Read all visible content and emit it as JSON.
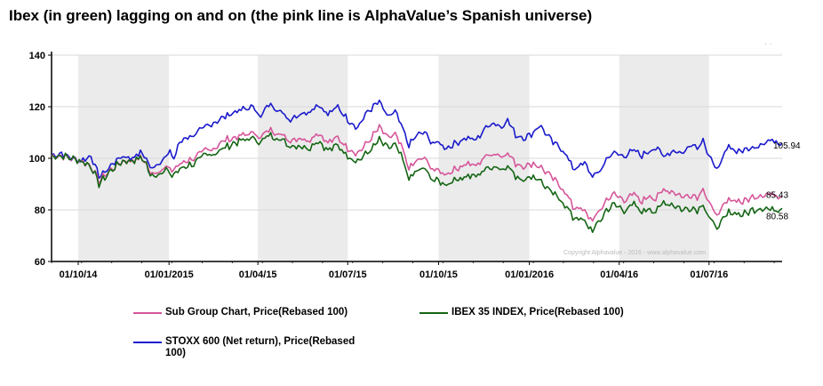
{
  "title": "Ibex (in green) lagging on and on (the pink line is AlphaValue’s Spanish universe)",
  "colors": {
    "pink": "#d6569a",
    "green": "#146514",
    "blue": "#1a1acc",
    "band": "#ebebeb"
  },
  "copyright": "Copyright Alphavalue - 2016 - www.alphavalue.com",
  "top_right_mark": "· ·",
  "chart_data": {
    "type": "line",
    "title": "",
    "xlabel": "",
    "ylabel": "",
    "ylim": [
      60,
      140
    ],
    "yticks": [
      60,
      80,
      100,
      120,
      140
    ],
    "xlim_days": [
      0,
      740
    ],
    "x_tick_labels": [
      {
        "label": "01/10/14",
        "day": 27
      },
      {
        "label": "01/01/2015",
        "day": 119
      },
      {
        "label": "01/04/15",
        "day": 209
      },
      {
        "label": "01/07/15",
        "day": 300
      },
      {
        "label": "01/10/15",
        "day": 392
      },
      {
        "label": "01/01/2016",
        "day": 484
      },
      {
        "label": "01/04/16",
        "day": 575
      },
      {
        "label": "01/07/16",
        "day": 666
      }
    ],
    "shaded_periods_days": [
      [
        27,
        119
      ],
      [
        209,
        300
      ],
      [
        392,
        484
      ],
      [
        575,
        666
      ]
    ],
    "series": [
      {
        "name": "STOXX 600 (Net return), Price(Rebased 100)",
        "color_key": "blue",
        "end_label": "105.94",
        "points": [
          [
            0,
            101
          ],
          [
            10,
            102
          ],
          [
            20,
            100
          ],
          [
            30,
            99
          ],
          [
            40,
            101
          ],
          [
            48,
            93
          ],
          [
            55,
            95
          ],
          [
            62,
            98
          ],
          [
            72,
            101
          ],
          [
            80,
            100
          ],
          [
            90,
            102
          ],
          [
            95,
            101
          ],
          [
            100,
            96
          ],
          [
            108,
            98
          ],
          [
            116,
            101
          ],
          [
            120,
            102
          ],
          [
            125,
            100
          ],
          [
            128,
            105
          ],
          [
            135,
            108
          ],
          [
            145,
            109
          ],
          [
            155,
            112
          ],
          [
            165,
            114
          ],
          [
            175,
            116
          ],
          [
            185,
            118
          ],
          [
            195,
            119
          ],
          [
            205,
            120
          ],
          [
            212,
            116
          ],
          [
            220,
            121
          ],
          [
            230,
            119
          ],
          [
            240,
            115
          ],
          [
            250,
            117
          ],
          [
            260,
            118
          ],
          [
            270,
            121
          ],
          [
            280,
            117
          ],
          [
            290,
            120
          ],
          [
            300,
            115
          ],
          [
            310,
            112
          ],
          [
            320,
            118
          ],
          [
            332,
            122
          ],
          [
            340,
            116
          ],
          [
            348,
            118
          ],
          [
            355,
            112
          ],
          [
            362,
            105
          ],
          [
            370,
            109
          ],
          [
            378,
            110
          ],
          [
            385,
            106
          ],
          [
            392,
            106
          ],
          [
            400,
            104
          ],
          [
            410,
            106
          ],
          [
            420,
            108
          ],
          [
            430,
            107
          ],
          [
            440,
            112
          ],
          [
            448,
            114
          ],
          [
            455,
            112
          ],
          [
            462,
            115
          ],
          [
            470,
            109
          ],
          [
            480,
            108
          ],
          [
            488,
            110
          ],
          [
            494,
            113
          ],
          [
            500,
            110
          ],
          [
            508,
            106
          ],
          [
            516,
            104
          ],
          [
            522,
            101
          ],
          [
            528,
            96
          ],
          [
            534,
            97
          ],
          [
            540,
            98
          ],
          [
            548,
            93
          ],
          [
            556,
            95
          ],
          [
            562,
            100
          ],
          [
            570,
            102
          ],
          [
            580,
            101
          ],
          [
            590,
            103
          ],
          [
            598,
            101
          ],
          [
            605,
            103
          ],
          [
            612,
            104
          ],
          [
            620,
            101
          ],
          [
            630,
            103
          ],
          [
            640,
            102
          ],
          [
            648,
            106
          ],
          [
            655,
            104
          ],
          [
            660,
            108
          ],
          [
            665,
            101
          ],
          [
            670,
            98
          ],
          [
            676,
            96
          ],
          [
            680,
            100
          ],
          [
            686,
            105
          ],
          [
            692,
            103
          ],
          [
            700,
            103
          ],
          [
            710,
            104
          ],
          [
            720,
            106
          ],
          [
            730,
            107
          ],
          [
            740,
            105.94
          ]
        ]
      },
      {
        "name": "Sub Group Chart, Price(Rebased 100)",
        "color_key": "pink",
        "end_label": "85.43",
        "points": [
          [
            0,
            101
          ],
          [
            10,
            101
          ],
          [
            20,
            100
          ],
          [
            30,
            99
          ],
          [
            40,
            97
          ],
          [
            48,
            91
          ],
          [
            55,
            94
          ],
          [
            62,
            96
          ],
          [
            72,
            99
          ],
          [
            80,
            99
          ],
          [
            90,
            100
          ],
          [
            95,
            99
          ],
          [
            100,
            94
          ],
          [
            108,
            95
          ],
          [
            116,
            97
          ],
          [
            120,
            95
          ],
          [
            128,
            97
          ],
          [
            135,
            99
          ],
          [
            145,
            100
          ],
          [
            155,
            103
          ],
          [
            165,
            104
          ],
          [
            175,
            107
          ],
          [
            185,
            108
          ],
          [
            195,
            109
          ],
          [
            205,
            110
          ],
          [
            212,
            108
          ],
          [
            220,
            111
          ],
          [
            230,
            110
          ],
          [
            240,
            107
          ],
          [
            250,
            108
          ],
          [
            260,
            107
          ],
          [
            270,
            110
          ],
          [
            280,
            106
          ],
          [
            290,
            108
          ],
          [
            300,
            104
          ],
          [
            310,
            102
          ],
          [
            320,
            106
          ],
          [
            332,
            112
          ],
          [
            340,
            108
          ],
          [
            348,
            109
          ],
          [
            355,
            104
          ],
          [
            362,
            96
          ],
          [
            370,
            99
          ],
          [
            378,
            100
          ],
          [
            385,
            96
          ],
          [
            392,
            95
          ],
          [
            400,
            94
          ],
          [
            410,
            96
          ],
          [
            420,
            98
          ],
          [
            430,
            97
          ],
          [
            440,
            101
          ],
          [
            448,
            102
          ],
          [
            455,
            101
          ],
          [
            462,
            102
          ],
          [
            470,
            98
          ],
          [
            480,
            97
          ],
          [
            488,
            98
          ],
          [
            494,
            97
          ],
          [
            500,
            95
          ],
          [
            508,
            92
          ],
          [
            516,
            89
          ],
          [
            522,
            86
          ],
          [
            528,
            81
          ],
          [
            534,
            81
          ],
          [
            540,
            79
          ],
          [
            548,
            76
          ],
          [
            556,
            80
          ],
          [
            562,
            84
          ],
          [
            570,
            86
          ],
          [
            580,
            84
          ],
          [
            590,
            86
          ],
          [
            598,
            83
          ],
          [
            605,
            86
          ],
          [
            612,
            84
          ],
          [
            620,
            88
          ],
          [
            630,
            87
          ],
          [
            640,
            85
          ],
          [
            648,
            86
          ],
          [
            655,
            85
          ],
          [
            660,
            89
          ],
          [
            665,
            83
          ],
          [
            670,
            80
          ],
          [
            676,
            78
          ],
          [
            680,
            81
          ],
          [
            686,
            84
          ],
          [
            692,
            84
          ],
          [
            700,
            83
          ],
          [
            710,
            85
          ],
          [
            720,
            86
          ],
          [
            730,
            86
          ],
          [
            740,
            85.43
          ]
        ]
      },
      {
        "name": "IBEX 35 INDEX, Price(Rebased 100)",
        "color_key": "green",
        "end_label": "80.58",
        "points": [
          [
            0,
            101
          ],
          [
            10,
            101
          ],
          [
            20,
            100
          ],
          [
            30,
            99
          ],
          [
            40,
            97
          ],
          [
            48,
            90
          ],
          [
            55,
            93
          ],
          [
            62,
            96
          ],
          [
            72,
            99
          ],
          [
            80,
            99
          ],
          [
            90,
            100
          ],
          [
            95,
            99
          ],
          [
            100,
            93
          ],
          [
            108,
            94
          ],
          [
            116,
            96
          ],
          [
            120,
            93
          ],
          [
            128,
            95
          ],
          [
            135,
            97
          ],
          [
            145,
            98
          ],
          [
            155,
            101
          ],
          [
            165,
            102
          ],
          [
            175,
            104
          ],
          [
            185,
            106
          ],
          [
            195,
            107
          ],
          [
            205,
            108
          ],
          [
            212,
            106
          ],
          [
            220,
            109
          ],
          [
            230,
            108
          ],
          [
            240,
            105
          ],
          [
            250,
            105
          ],
          [
            260,
            104
          ],
          [
            270,
            107
          ],
          [
            280,
            103
          ],
          [
            290,
            105
          ],
          [
            300,
            101
          ],
          [
            310,
            99
          ],
          [
            320,
            102
          ],
          [
            332,
            107
          ],
          [
            340,
            104
          ],
          [
            348,
            105
          ],
          [
            355,
            100
          ],
          [
            362,
            92
          ],
          [
            370,
            95
          ],
          [
            378,
            96
          ],
          [
            385,
            92
          ],
          [
            392,
            91
          ],
          [
            400,
            90
          ],
          [
            410,
            92
          ],
          [
            420,
            93
          ],
          [
            430,
            93
          ],
          [
            440,
            96
          ],
          [
            448,
            97
          ],
          [
            455,
            96
          ],
          [
            462,
            97
          ],
          [
            470,
            93
          ],
          [
            480,
            92
          ],
          [
            488,
            93
          ],
          [
            494,
            92
          ],
          [
            500,
            89
          ],
          [
            508,
            86
          ],
          [
            516,
            84
          ],
          [
            522,
            81
          ],
          [
            528,
            77
          ],
          [
            534,
            77
          ],
          [
            540,
            75
          ],
          [
            548,
            72
          ],
          [
            556,
            76
          ],
          [
            562,
            80
          ],
          [
            570,
            82
          ],
          [
            580,
            80
          ],
          [
            590,
            82
          ],
          [
            598,
            79
          ],
          [
            605,
            81
          ],
          [
            612,
            79
          ],
          [
            620,
            83
          ],
          [
            630,
            82
          ],
          [
            640,
            80
          ],
          [
            648,
            81
          ],
          [
            655,
            80
          ],
          [
            660,
            83
          ],
          [
            665,
            77
          ],
          [
            670,
            75
          ],
          [
            676,
            73
          ],
          [
            680,
            76
          ],
          [
            686,
            79
          ],
          [
            692,
            79
          ],
          [
            700,
            78
          ],
          [
            710,
            80
          ],
          [
            720,
            81
          ],
          [
            730,
            80
          ],
          [
            740,
            80.58
          ]
        ]
      }
    ]
  },
  "legend": [
    {
      "label": "Sub Group Chart, Price(Rebased 100)",
      "color_key": "pink"
    },
    {
      "label": "IBEX 35 INDEX, Price(Rebased 100)",
      "color_key": "green"
    },
    {
      "label": "STOXX 600 (Net return), Price(Rebased 100)",
      "color_key": "blue"
    }
  ]
}
